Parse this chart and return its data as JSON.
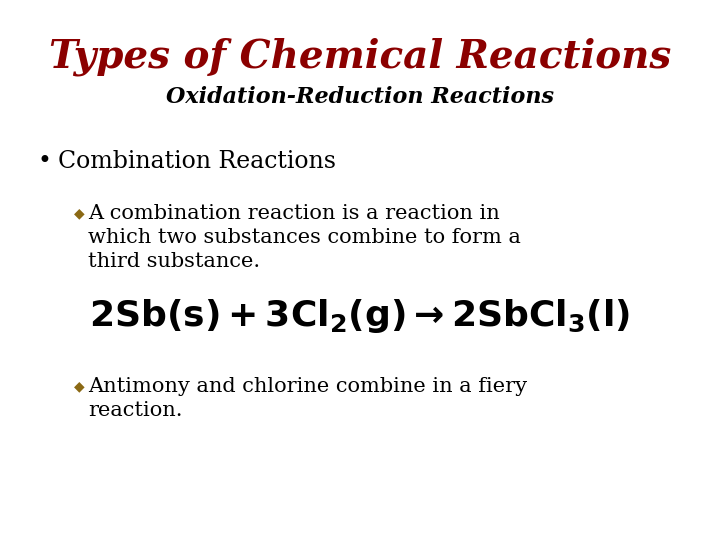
{
  "title": "Types of Chemical Reactions",
  "subtitle": "Oxidation-Reduction Reactions",
  "title_color": "#8B0000",
  "subtitle_color": "#000000",
  "bullet_color": "#000000",
  "diamond_color": "#8B6914",
  "background_color": "#FFFFFF",
  "title_fontsize": 28,
  "subtitle_fontsize": 16,
  "bullet_fontsize": 17,
  "sub_bullet_fontsize": 15,
  "equation_fontsize": 26,
  "bullet_text": "Combination Reactions",
  "sub_bullet1_line1": "A combination reaction is a reaction in",
  "sub_bullet1_line2": "which two substances combine to form a",
  "sub_bullet1_line3": "third substance.",
  "sub_bullet2_line1": "Antimony and chlorine combine in a fiery",
  "sub_bullet2_line2": "reaction."
}
